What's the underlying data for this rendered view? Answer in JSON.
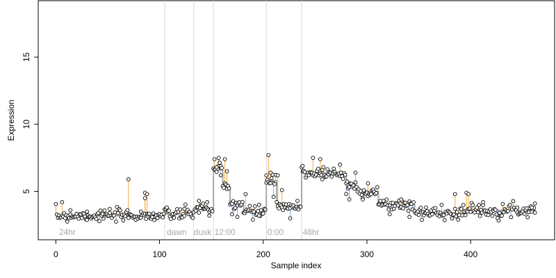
{
  "chart_data": {
    "type": "scatter",
    "title": "",
    "xlabel": "Sample index",
    "ylabel": "Expression",
    "xlim": [
      -17,
      481
    ],
    "ylim": [
      1.4,
      19.2
    ],
    "x_ticks": [
      0,
      100,
      200,
      300,
      400
    ],
    "y_ticks": [
      5,
      10,
      15
    ],
    "grid": false,
    "legend": "none",
    "boundaries": [
      105,
      133,
      152,
      203,
      237
    ],
    "group_labels": [
      {
        "x": 3,
        "text": "24hr"
      },
      {
        "x": 107,
        "text": "dawn"
      },
      {
        "x": 133,
        "text": "dusk"
      },
      {
        "x": 153,
        "text": "12:00"
      },
      {
        "x": 204,
        "text": "0:00"
      },
      {
        "x": 238,
        "text": "48hr"
      }
    ],
    "colors": {
      "up": "#f2a93b",
      "down": "#7fa7e8",
      "step": "#a8a8a8",
      "boundary": "#d8d8d8",
      "point_fill": "#ffffff",
      "point_edge": "#000000"
    },
    "fitted_segments": [
      {
        "x0": 0,
        "x1": 104,
        "y": 3.2
      },
      {
        "x0": 105,
        "x1": 132,
        "y": 3.3
      },
      {
        "x0": 133,
        "x1": 151,
        "y": 3.7
      },
      {
        "x0": 152,
        "x1": 160,
        "y": 6.6
      },
      {
        "x0": 161,
        "x1": 167,
        "y": 5.3
      },
      {
        "x0": 168,
        "x1": 180,
        "y": 4.1
      },
      {
        "x0": 181,
        "x1": 202,
        "y": 3.5
      },
      {
        "x0": 203,
        "x1": 212,
        "y": 5.8
      },
      {
        "x0": 213,
        "x1": 236,
        "y": 3.8
      },
      {
        "x0": 237,
        "x1": 263,
        "y": 6.4
      },
      {
        "x0": 264,
        "x1": 279,
        "y": 6.3
      },
      {
        "x0": 280,
        "x1": 290,
        "y": 5.4
      },
      {
        "x0": 291,
        "x1": 310,
        "y": 5.0
      },
      {
        "x0": 311,
        "x1": 345,
        "y": 4.0
      },
      {
        "x0": 346,
        "x1": 392,
        "y": 3.4
      },
      {
        "x0": 393,
        "x1": 462,
        "y": 3.6
      }
    ],
    "outliers": [
      {
        "x": 6,
        "y": 4.2
      },
      {
        "x": 14,
        "y": 3.6
      },
      {
        "x": 30,
        "y": 3.5
      },
      {
        "x": 52,
        "y": 3.4
      },
      {
        "x": 70,
        "y": 5.9
      },
      {
        "x": 82,
        "y": 3.5
      },
      {
        "x": 86,
        "y": 4.9
      },
      {
        "x": 88,
        "y": 4.8
      },
      {
        "x": 86,
        "y": 4.5
      },
      {
        "x": 107,
        "y": 3.8
      },
      {
        "x": 124,
        "y": 3.7
      },
      {
        "x": 138,
        "y": 4.3
      },
      {
        "x": 142,
        "y": 4.1
      },
      {
        "x": 146,
        "y": 4.2
      },
      {
        "x": 148,
        "y": 3.2
      },
      {
        "x": 153,
        "y": 7.4
      },
      {
        "x": 155,
        "y": 6.8
      },
      {
        "x": 157,
        "y": 7.5
      },
      {
        "x": 159,
        "y": 6.2
      },
      {
        "x": 163,
        "y": 7.4
      },
      {
        "x": 165,
        "y": 6.5
      },
      {
        "x": 170,
        "y": 3.3
      },
      {
        "x": 175,
        "y": 3.1
      },
      {
        "x": 183,
        "y": 4.8
      },
      {
        "x": 190,
        "y": 2.9
      },
      {
        "x": 196,
        "y": 3.2
      },
      {
        "x": 203,
        "y": 6.2
      },
      {
        "x": 205,
        "y": 7.7
      },
      {
        "x": 207,
        "y": 6.4
      },
      {
        "x": 210,
        "y": 4.6
      },
      {
        "x": 214,
        "y": 6.2
      },
      {
        "x": 218,
        "y": 5.1
      },
      {
        "x": 226,
        "y": 3.0
      },
      {
        "x": 233,
        "y": 4.3
      },
      {
        "x": 238,
        "y": 6.9
      },
      {
        "x": 248,
        "y": 7.5
      },
      {
        "x": 255,
        "y": 7.4
      },
      {
        "x": 257,
        "y": 5.9
      },
      {
        "x": 268,
        "y": 6.7
      },
      {
        "x": 274,
        "y": 7.0
      },
      {
        "x": 280,
        "y": 4.8
      },
      {
        "x": 283,
        "y": 4.4
      },
      {
        "x": 289,
        "y": 6.4
      },
      {
        "x": 296,
        "y": 4.4
      },
      {
        "x": 301,
        "y": 5.6
      },
      {
        "x": 313,
        "y": 4.3
      },
      {
        "x": 322,
        "y": 3.3
      },
      {
        "x": 333,
        "y": 4.4
      },
      {
        "x": 341,
        "y": 3.1
      },
      {
        "x": 357,
        "y": 3.8
      },
      {
        "x": 372,
        "y": 4.0
      },
      {
        "x": 385,
        "y": 4.8
      },
      {
        "x": 396,
        "y": 4.9
      },
      {
        "x": 398,
        "y": 4.8
      },
      {
        "x": 412,
        "y": 4.2
      },
      {
        "x": 430,
        "y": 3.2
      },
      {
        "x": 445,
        "y": 3.8
      },
      {
        "x": 459,
        "y": 3.8
      },
      {
        "x": 462,
        "y": 4.1
      }
    ],
    "noise_seed": 7,
    "noise_sd": 0.22
  }
}
